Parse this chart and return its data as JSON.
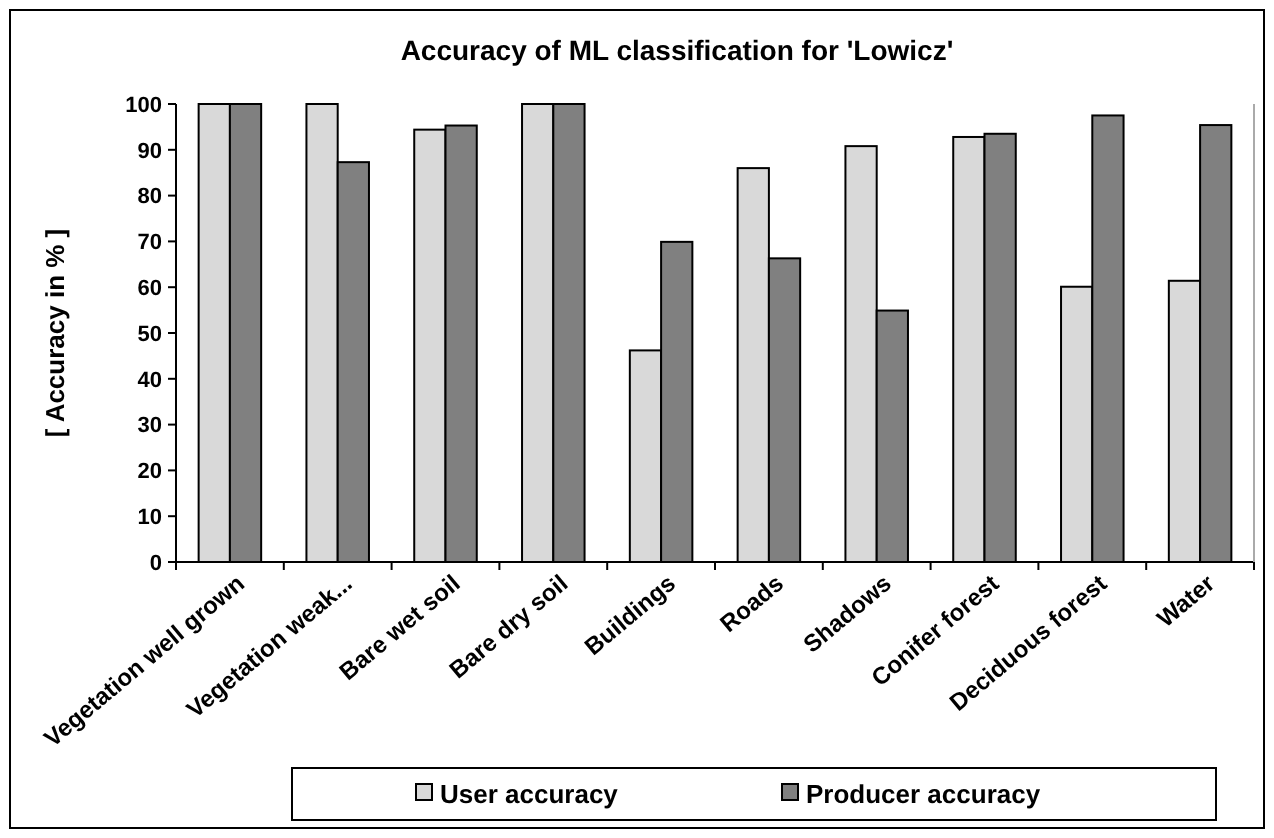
{
  "chart_data": {
    "type": "bar",
    "title": "Accuracy of ML classification for 'Lowicz'",
    "ylabel": "[ Accuracy in  % ]",
    "categories": [
      "Vegetation well grown",
      "Vegetation weak...",
      "Bare wet soil",
      "Bare dry soil",
      "Buildings",
      "Roads",
      "Shadows",
      "Conifer forest",
      "Deciduous forest",
      "Water"
    ],
    "series": [
      {
        "name": "User accuracy",
        "color": "#d9d9d9",
        "values": [
          100,
          100,
          94.4,
          100,
          46.2,
          86,
          90.8,
          92.8,
          60.1,
          61.4
        ]
      },
      {
        "name": "Producer accuracy",
        "color": "#808080",
        "values": [
          100,
          87.3,
          95.3,
          100,
          69.9,
          66.3,
          54.9,
          93.5,
          97.5,
          95.4
        ]
      }
    ],
    "ylim": [
      0,
      100
    ],
    "yticks": [
      0,
      10,
      20,
      30,
      40,
      50,
      60,
      70,
      80,
      90,
      100
    ],
    "grid": false,
    "legend": "bottom"
  }
}
